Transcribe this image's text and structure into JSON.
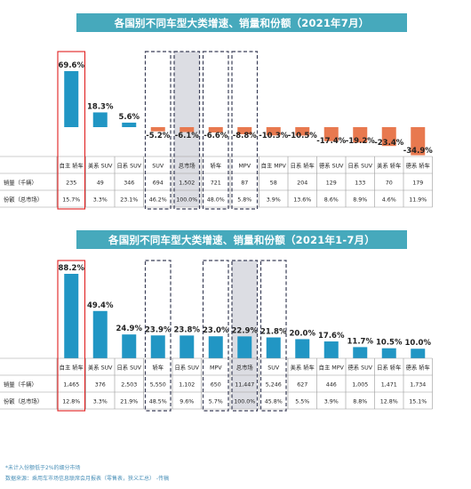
{
  "chart_data": [
    {
      "type": "bar",
      "title": "各国别不同车型大类增速、销量和份额（2021年7月）",
      "categories": [
        "自主 轿车",
        "美系 SUV",
        "日系 SUV",
        "SUV",
        "总市场",
        "轿车",
        "MPV",
        "自主 MPV",
        "日系 轿车",
        "德系 SUV",
        "日系 SUV",
        "美系 轿车",
        "德系 轿车"
      ],
      "value_labels": [
        "69.6%",
        "18.3%",
        "5.6%",
        "-5.2%",
        "-6.1%",
        "-6.6%",
        "-8.8%",
        "-10.3%",
        "-10.5%",
        "-17.4%",
        "-19.2%",
        "-23.4%",
        "-34.9%"
      ],
      "values": [
        69.6,
        18.3,
        5.6,
        -5.2,
        -6.1,
        -6.6,
        -8.8,
        -10.3,
        -10.5,
        -17.4,
        -19.2,
        -23.4,
        -34.9
      ],
      "colors": {
        "positive": "#2196c4",
        "negative": "#e8794f"
      },
      "table": {
        "rows": [
          {
            "label": "销量（千辆）",
            "values": [
              "235",
              "49",
              "346",
              "694",
              "1,502",
              "721",
              "87",
              "58",
              "204",
              "129",
              "133",
              "70",
              "179"
            ]
          },
          {
            "label": "份额（总市场）",
            "values": [
              "15.7%",
              "3.3%",
              "23.1%",
              "46.2%",
              "100.0%",
              "48.0%",
              "5.8%",
              "3.9%",
              "13.6%",
              "8.6%",
              "8.9%",
              "4.6%",
              "11.9%"
            ]
          }
        ]
      },
      "highlight": {
        "red_box": [
          0
        ],
        "dashed_boxes": [
          3,
          4,
          5,
          6
        ],
        "gray_fill": [
          4
        ]
      }
    },
    {
      "type": "bar",
      "title": "各国别不同车型大类增速、销量和份额（2021年1-7月）",
      "categories": [
        "自主 轿车",
        "美系 SUV",
        "日系 SUV",
        "轿车",
        "日系 SUV",
        "MPV",
        "总市场",
        "SUV",
        "美系 轿车",
        "自主 MPV",
        "德系 SUV",
        "日系 轿车",
        "德系 轿车"
      ],
      "value_labels": [
        "88.2%",
        "49.4%",
        "24.9%",
        "23.9%",
        "23.8%",
        "23.0%",
        "22.9%",
        "21.8%",
        "20.0%",
        "17.6%",
        "11.7%",
        "10.5%",
        "10.0%"
      ],
      "values": [
        88.2,
        49.4,
        24.9,
        23.9,
        23.8,
        23.0,
        22.9,
        21.8,
        20.0,
        17.6,
        11.7,
        10.5,
        10.0
      ],
      "colors": {
        "positive": "#2196c4",
        "negative": "#e8794f"
      },
      "table": {
        "rows": [
          {
            "label": "销量（千辆）",
            "values": [
              "1,465",
              "376",
              "2,503",
              "5,550",
              "1,102",
              "650",
              "11,447",
              "5,246",
              "627",
              "446",
              "1,005",
              "1,471",
              "1,734"
            ]
          },
          {
            "label": "份额（总市场）",
            "values": [
              "12.8%",
              "3.3%",
              "21.9%",
              "48.5%",
              "9.6%",
              "5.7%",
              "100.0%",
              "45.8%",
              "5.5%",
              "3.9%",
              "8.8%",
              "12.8%",
              "15.1%"
            ]
          }
        ]
      },
      "highlight": {
        "red_box": [
          0
        ],
        "dashed_boxes": [
          3,
          5,
          6,
          7
        ],
        "gray_fill": [
          6
        ]
      }
    }
  ],
  "footer": {
    "note": "*未计入份额低于2%的细分市场",
    "source": "数据来源：乘用车市场信息联席会月报表（零售表，狭义汇总）  -传稿"
  }
}
